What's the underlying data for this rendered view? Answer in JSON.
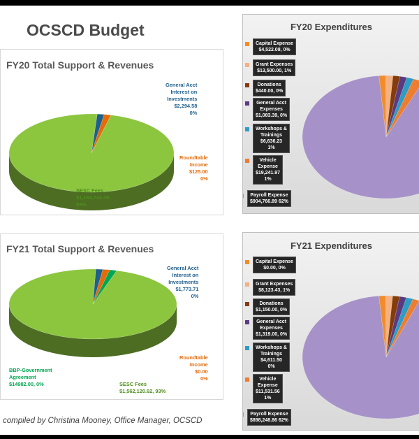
{
  "page_title": "OCSCD Budget",
  "footer": "compiled by Christina Mooney, Office Manager, OCSCD",
  "chart_data": [
    {
      "type": "pie",
      "title": "FY20 Total Support & Revenues",
      "slices": [
        {
          "label": "General Acct Interest on Investments",
          "value": 2294.58,
          "text": "General Acct Interest on Investments $2,294.58 0%",
          "color": "#1f5f8b"
        },
        {
          "label": "Roundtable Income",
          "value": 125.0,
          "text": "Roundtable Income $125.00 0%",
          "color": "#e36c09"
        },
        {
          "label": "SESC Fees",
          "value": 1163744.49,
          "text": "SESC Fees $1,163,744.49, 93%",
          "color": "#8cc63f"
        }
      ]
    },
    {
      "type": "pie",
      "title": "FY20 Expenditures",
      "slices": [
        {
          "label": "Capital Expense",
          "value": 4522.08,
          "text": "$4,522.08, 0%",
          "color": "#f28c28"
        },
        {
          "label": "Grant Expenses",
          "value": 13500.0,
          "text": "$13,500.00, 1%",
          "color": "#f4b183"
        },
        {
          "label": "Donations",
          "value": 440.0,
          "text": "$440.00, 0%",
          "color": "#843c0c"
        },
        {
          "label": "General Acct Expenses",
          "value": 1083.39,
          "text": "$1,083.39, 0%",
          "color": "#5b3a80"
        },
        {
          "label": "Workshops & Trainings",
          "value": 6636.23,
          "text": "$6,636.23 1%",
          "color": "#2e9cc4"
        },
        {
          "label": "Vehicle Expense",
          "value": 19241.97,
          "text": "$19,241.97 1%",
          "color": "#ed7d31"
        },
        {
          "label": "Payroll Expense",
          "value": 904766.89,
          "text": "$904,766.89 62%",
          "color": "#a692c9"
        }
      ]
    },
    {
      "type": "pie",
      "title": "FY21 Total Support & Revenues",
      "slices": [
        {
          "label": "General Acct Interest on Investments",
          "value": 1773.71,
          "text": "General Acct Interest on Investments $1,773.71 0%",
          "color": "#1f5f8b"
        },
        {
          "label": "Roundtable Income",
          "value": 0.0,
          "text": "Roundtable Income $0.00 0%",
          "color": "#e36c09"
        },
        {
          "label": "BBP-Government Agreement",
          "value": 14982.0,
          "text": "BBP-Government Agreement $14982.00, 0%",
          "color": "#00a651"
        },
        {
          "label": "SESC Fees",
          "value": 1562120.62,
          "text": "SESC Fees $1,562,120.62, 93%",
          "color": "#8cc63f"
        }
      ]
    },
    {
      "type": "pie",
      "title": "FY21 Expenditures",
      "slices": [
        {
          "label": "Capital Expense",
          "value": 0.0,
          "text": "$0.00, 0%",
          "color": "#f28c28"
        },
        {
          "label": "Grant Expenses",
          "value": 8123.43,
          "text": "$8,123.43, 1%",
          "color": "#f4b183"
        },
        {
          "label": "Donations",
          "value": 1150.0,
          "text": "$1,150.00, 0%",
          "color": "#843c0c"
        },
        {
          "label": "General Acct Expenses",
          "value": 1319.0,
          "text": "$1,319.00, 0%",
          "color": "#5b3a80"
        },
        {
          "label": "Workshops & Trainings",
          "value": 4611.5,
          "text": "$4,611.50 0%",
          "color": "#2e9cc4"
        },
        {
          "label": "Vehicle Expense",
          "value": 11531.56,
          "text": "$11,531.56 1%",
          "color": "#ed7d31"
        },
        {
          "label": "Payroll Expense",
          "value": 898248.86,
          "text": "$898,248.86 62%",
          "color": "#a692c9"
        }
      ]
    }
  ]
}
